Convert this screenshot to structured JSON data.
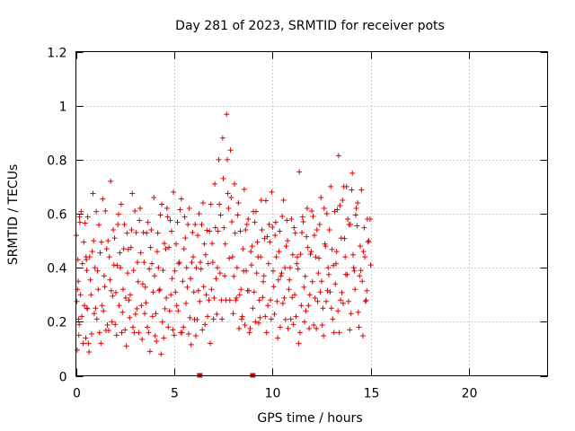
{
  "chart_data": {
    "type": "scatter",
    "title": "Day 281 of 2023, SRMTID for receiver pots",
    "xlabel": "GPS time / hours",
    "ylabel": "SRMTID / TECUs",
    "xlim": [
      0,
      24
    ],
    "ylim": [
      0,
      1.2
    ],
    "x_ticks": [
      0,
      5,
      10,
      15,
      20
    ],
    "x_tick_labels": [
      "0",
      "5",
      "10",
      "15",
      "20"
    ],
    "y_ticks": [
      0,
      0.2,
      0.4,
      0.6,
      0.8,
      1.0,
      1.2
    ],
    "y_tick_labels": [
      "0",
      "0.2",
      "0.4",
      "0.6",
      "0.8",
      "1",
      "1.2"
    ],
    "grid": true,
    "marker": "plus",
    "series_color": "#e00000",
    "data_extent_x": [
      0,
      15
    ],
    "zero_markers_x": [
      6.3,
      9.0
    ],
    "series": [
      {
        "x": [
          0.05,
          0.1,
          0.15,
          0.2,
          0.3,
          0.4,
          0.5,
          0.55,
          0.6,
          0.7,
          0.8,
          0.9,
          1.0,
          1.1,
          1.2,
          1.3,
          1.4,
          1.5,
          1.6,
          1.7,
          1.8,
          1.9,
          2.0,
          2.1,
          2.2,
          2.3,
          2.4,
          2.5,
          2.6,
          2.7,
          2.8,
          2.9,
          3.0,
          3.1,
          3.2,
          3.3,
          3.4,
          3.5,
          3.6,
          3.7,
          3.8,
          3.9,
          4.0,
          4.1,
          4.2,
          4.3,
          4.4,
          4.5,
          4.6,
          4.7,
          4.8,
          4.9,
          5.0,
          5.1,
          5.2,
          5.3,
          5.4,
          5.5,
          5.6,
          5.7,
          5.8,
          5.9,
          6.0,
          6.1,
          6.2,
          6.3,
          6.4,
          6.5,
          6.6,
          6.7,
          6.8,
          6.9,
          7.0,
          7.1,
          7.2,
          7.3,
          7.4,
          7.5,
          7.6,
          7.7,
          7.8,
          7.9,
          8.0,
          8.1,
          8.2,
          8.3,
          8.4,
          8.5,
          8.6,
          8.7,
          8.8,
          8.9,
          9.0,
          9.1,
          9.2,
          9.3,
          9.4,
          9.5,
          9.6,
          9.7,
          9.8,
          9.9,
          10.0,
          10.1,
          10.2,
          10.3,
          10.4,
          10.5,
          10.6,
          10.7,
          10.8,
          10.9,
          11.0,
          11.1,
          11.2,
          11.3,
          11.4,
          11.5,
          11.6,
          11.7,
          11.8,
          11.9,
          12.0,
          12.1,
          12.2,
          12.3,
          12.4,
          12.5,
          12.6,
          12.7,
          12.8,
          12.9,
          13.0,
          13.1,
          13.2,
          13.3,
          13.4,
          13.5,
          13.6,
          13.7,
          13.8,
          13.9,
          14.0,
          14.1,
          14.2,
          14.3,
          14.4,
          14.5,
          14.6,
          14.7,
          14.8,
          14.9,
          15.0
        ],
        "y_sets": [
          [
            0.52,
            0.08,
            0.37,
            0.18,
            0.62,
            0.12,
            0.55,
            0.46,
            0.24,
            0.1,
            0.3,
            0.66,
            0.42,
            0.2,
            0.57,
            0.12,
            0.64,
            0.35,
            0.46,
            0.18,
            0.72,
            0.28,
            0.53,
            0.14,
            0.61,
            0.4,
            0.22,
            0.58,
            0.1,
            0.48,
            0.3,
            0.66,
            0.18,
            0.52,
            0.36,
            0.62,
            0.12,
            0.44,
            0.26,
            0.58,
            0.09,
            0.4,
            0.68,
            0.22,
            0.54,
            0.32,
            0.62,
            0.16,
            0.46,
            0.6,
            0.24,
            0.52,
            0.7,
            0.3,
            0.58,
            0.42,
            0.64,
            0.2,
            0.5,
            0.34,
            0.62,
            0.1,
            0.46,
            0.55,
            0.22,
            0.6,
            0.38,
            0.66,
            0.18,
            0.55,
            0.28,
            0.62,
            0.44,
            0.7,
            0.24,
            0.8,
            0.58,
            0.9,
            0.36,
            0.98,
            0.62,
            0.82,
            0.46,
            0.7,
            0.3,
            0.64,
            0.52,
            0.24,
            0.68,
            0.4,
            0.58,
            0.16,
            0.5,
            0.3,
            0.62,
            0.44,
            0.2,
            0.56,
            0.36,
            0.66,
            0.26,
            0.48,
            0.7,
            0.32,
            0.58,
            0.14,
            0.52,
            0.4,
            0.64,
            0.22,
            0.5,
            0.34,
            0.6,
            0.18,
            0.54,
            0.44,
            0.74,
            0.28,
            0.56,
            0.38,
            0.62,
            0.16,
            0.48,
            0.58,
            0.3,
            0.54,
            0.42,
            0.68,
            0.24,
            0.5,
            0.6,
            0.36,
            0.72,
            0.2,
            0.62,
            0.46,
            0.8,
            0.3,
            0.64,
            0.52,
            0.7,
            0.26,
            0.58,
            0.74,
            0.4,
            0.62,
            0.22,
            0.5,
            0.34,
            0.56,
            0.28,
            0.48,
            0.6
          ],
          [
            0.26,
            0.45,
            0.14,
            0.58,
            0.22,
            0.48,
            0.16,
            0.38,
            0.6,
            0.44,
            0.14,
            0.52,
            0.24,
            0.4,
            0.16,
            0.48,
            0.26,
            0.6,
            0.2,
            0.44,
            0.3,
            0.56,
            0.18,
            0.42,
            0.26,
            0.62,
            0.34,
            0.16,
            0.54,
            0.28,
            0.46,
            0.2,
            0.6,
            0.26,
            0.16,
            0.44,
            0.36,
            0.22,
            0.54,
            0.16,
            0.46,
            0.24,
            0.36,
            0.14,
            0.4,
            0.58,
            0.22,
            0.48,
            0.3,
            0.18,
            0.56,
            0.38,
            0.14,
            0.5,
            0.24,
            0.6,
            0.18,
            0.46,
            0.28,
            0.56,
            0.2,
            0.44,
            0.3,
            0.16,
            0.52,
            0.26,
            0.58,
            0.32,
            0.46,
            0.22,
            0.52,
            0.34,
            0.2,
            0.56,
            0.4,
            0.62,
            0.3,
            0.72,
            0.5,
            0.8,
            0.42,
            0.68,
            0.22,
            0.54,
            0.4,
            0.16,
            0.34,
            0.46,
            0.2,
            0.56,
            0.3,
            0.48,
            0.24,
            0.58,
            0.38,
            0.18,
            0.46,
            0.28,
            0.52,
            0.16,
            0.4,
            0.3,
            0.54,
            0.24,
            0.44,
            0.34,
            0.2,
            0.58,
            0.3,
            0.48,
            0.16,
            0.42,
            0.28,
            0.56,
            0.22,
            0.38,
            0.18,
            0.52,
            0.34,
            0.24,
            0.46,
            0.32,
            0.6,
            0.2,
            0.44,
            0.26,
            0.58,
            0.34,
            0.16,
            0.48,
            0.3,
            0.56,
            0.24,
            0.42,
            0.34,
            0.6,
            0.18,
            0.5,
            0.28,
            0.44,
            0.36,
            0.58,
            0.22,
            0.46,
            0.32,
            0.54,
            0.2,
            0.38,
            0.16,
            0.44,
            0.3,
            0.52,
            0.4
          ],
          [
            0.34,
            0.2,
            0.6,
            0.3,
            0.4,
            0.28,
            0.42,
            0.26,
            0.12,
            0.34,
            0.48,
            0.22,
            0.62,
            0.32,
            0.44,
            0.28,
            0.36,
            0.18,
            0.5,
            0.34,
            0.22,
            0.4,
            0.32,
            0.56,
            0.44,
            0.18,
            0.46,
            0.3,
            0.38,
            0.2,
            0.56,
            0.38,
            0.24,
            0.42,
            0.56,
            0.28,
            0.52,
            0.34,
            0.18,
            0.38,
            0.56,
            0.3,
            0.16,
            0.46,
            0.3,
            0.1,
            0.38,
            0.26,
            0.62,
            0.46,
            0.32,
            0.16,
            0.4,
            0.26,
            0.4,
            0.18,
            0.34,
            0.6,
            0.4,
            0.14,
            0.38,
            0.52,
            0.22,
            0.4,
            0.3,
            0.44,
            0.16,
            0.5,
            0.3,
            0.4,
            0.14,
            0.48,
            0.3,
            0.36,
            0.52,
            0.4,
            0.2,
            0.56,
            0.28,
            0.66,
            0.3,
            0.56,
            0.38,
            0.28,
            0.58,
            0.32,
            0.2,
            0.4,
            0.54,
            0.3,
            0.18,
            0.4,
            0.62,
            0.2,
            0.48,
            0.3,
            0.64,
            0.36,
            0.22,
            0.5,
            0.58,
            0.2,
            0.4,
            0.52,
            0.26,
            0.48,
            0.36,
            0.28,
            0.4,
            0.56,
            0.34,
            0.2,
            0.46,
            0.3,
            0.4,
            0.14,
            0.44,
            0.6,
            0.2,
            0.5,
            0.28,
            0.44,
            0.36,
            0.52,
            0.16,
            0.4,
            0.3,
            0.2,
            0.62,
            0.26,
            0.42,
            0.3,
            0.48,
            0.16,
            0.4,
            0.26,
            0.62,
            0.32,
            0.7,
            0.36,
            0.6,
            0.16,
            0.7,
            0.4,
            0.58,
            0.66,
            0.36,
            0.7,
            0.46,
            0.26,
            0.6
          ]
        ]
      }
    ]
  }
}
